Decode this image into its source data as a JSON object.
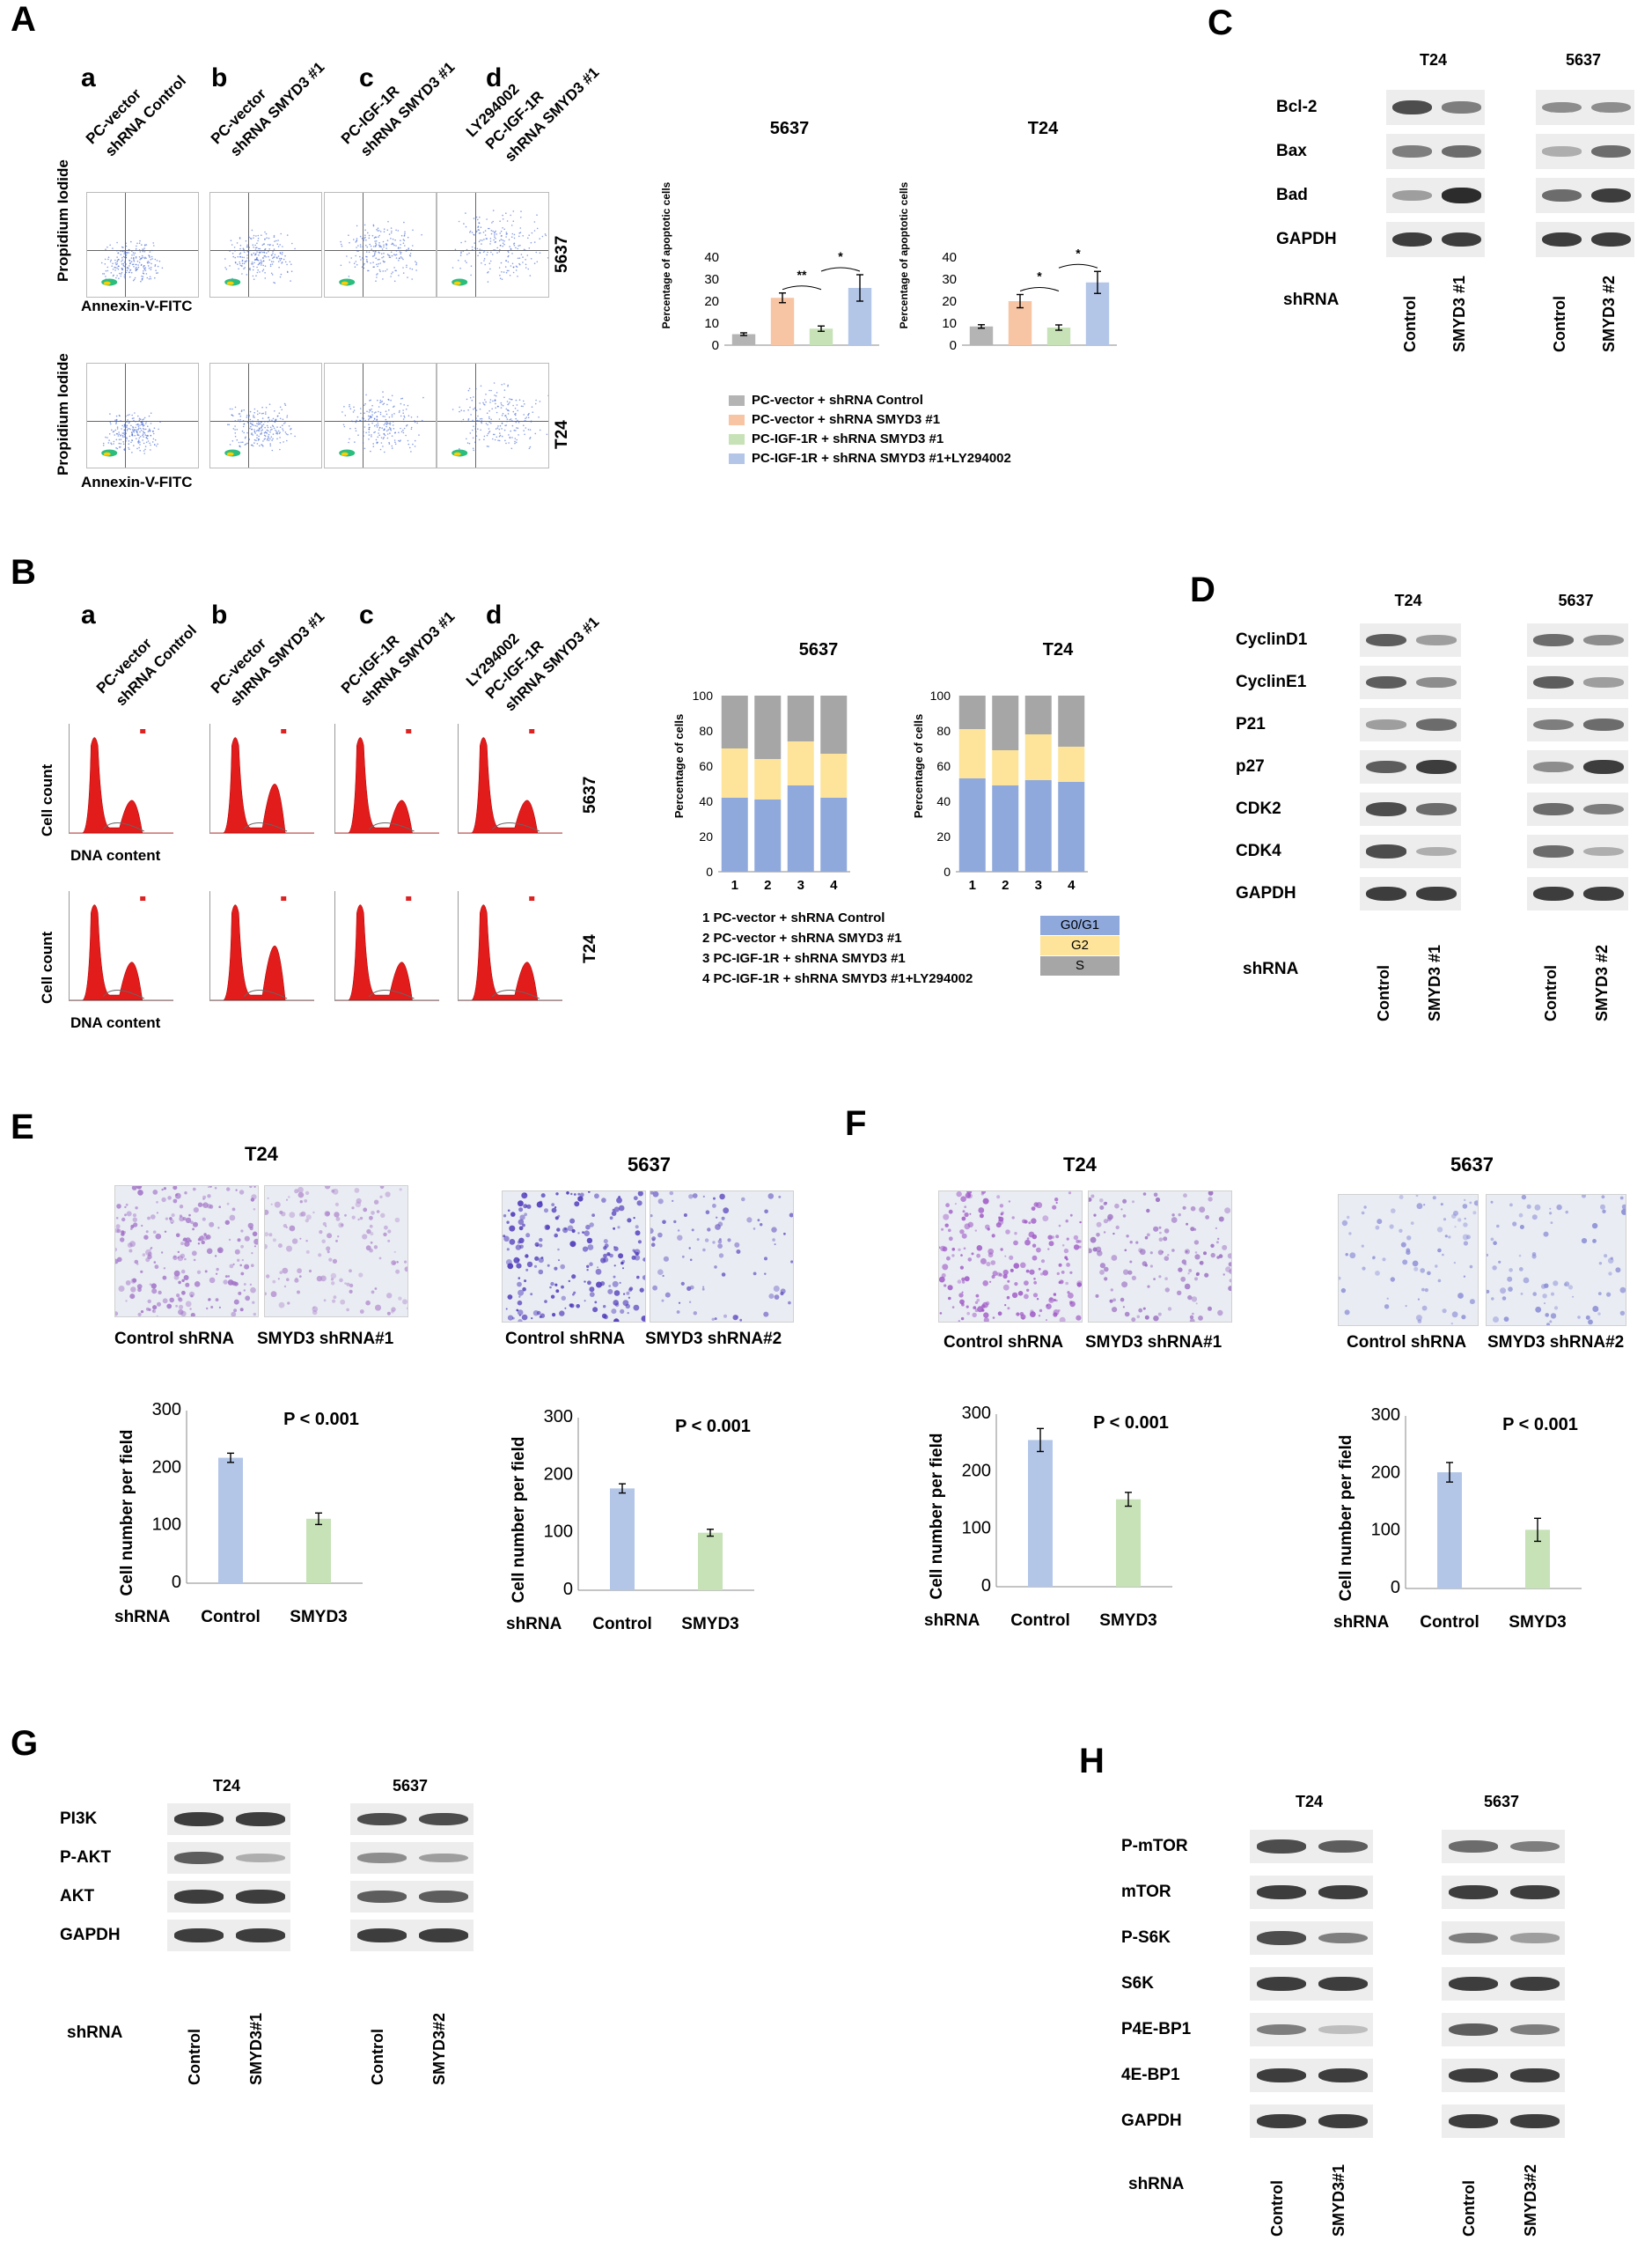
{
  "panels": {
    "A": "A",
    "B": "B",
    "C": "C",
    "D": "D",
    "E": "E",
    "F": "F",
    "G": "G",
    "H": "H"
  },
  "panelA": {
    "sublabels": [
      "a",
      "b",
      "c",
      "d"
    ],
    "conditions": [
      [
        "PC-vector",
        "shRNA Control"
      ],
      [
        "PC-vector",
        "shRNA SMYD3 #1"
      ],
      [
        "PC-IGF-1R",
        "shRNA SMYD3 #1"
      ],
      [
        "LY294002",
        "PC-IGF-1R",
        "shRNA SMYD3 #1"
      ]
    ],
    "row_labels": [
      "5637",
      "T24"
    ],
    "y_axis": "Propidium Iodide",
    "x_axis": "Annexin-V-FITC",
    "legend": [
      "PC-vector + shRNA Control",
      "PC-vector + shRNA SMYD3 #1",
      "PC-IGF-1R + shRNA SMYD3 #1",
      "PC-IGF-1R + shRNA SMYD3 #1+LY294002"
    ],
    "legend_colors": [
      "#b4b4b4",
      "#f7c4a4",
      "#c6e2b6",
      "#b3c6e8"
    ]
  },
  "panelB": {
    "sublabels": [
      "a",
      "b",
      "c",
      "d"
    ],
    "conditions": [
      [
        "PC-vector",
        "shRNA Control"
      ],
      [
        "PC-vector",
        "shRNA SMYD3 #1"
      ],
      [
        "PC-IGF-1R",
        "shRNA SMYD3 #1"
      ],
      [
        "LY294002",
        "PC-IGF-1R",
        "shRNA SMYD3 #1"
      ]
    ],
    "row_labels": [
      "5637",
      "T24"
    ],
    "y_axis": "Cell count",
    "x_axis": "DNA content",
    "legend_numbered": [
      "1  PC-vector + shRNA Control",
      "2  PC-vector + shRNA SMYD3 #1",
      "3  PC-IGF-1R + shRNA SMYD3 #1",
      "4  PC-IGF-1R + shRNA SMYD3 #1+LY294002"
    ],
    "phase_legend": [
      "G0/G1",
      "G2",
      "S"
    ],
    "phase_colors": [
      "#8fa9dc",
      "#fde49a",
      "#a6a6a6"
    ]
  },
  "panelC": {
    "cell_lines": [
      "T24",
      "5637"
    ],
    "proteins": [
      "Bcl-2",
      "Bax",
      "Bad",
      "GAPDH"
    ],
    "row_label": "shRNA",
    "lanes_left": [
      "Control",
      "SMYD3 #1"
    ],
    "lanes_right": [
      "Control",
      "SMYD3 #2"
    ]
  },
  "panelD": {
    "cell_lines": [
      "T24",
      "5637"
    ],
    "proteins": [
      "CyclinD1",
      "CyclinE1",
      "P21",
      "p27",
      "CDK2",
      "CDK4",
      "GAPDH"
    ],
    "row_label": "shRNA",
    "lanes_left": [
      "Control",
      "SMYD3 #1"
    ],
    "lanes_right": [
      "Control",
      "SMYD3 #2"
    ]
  },
  "panelE": {
    "cell_lines": [
      "T24",
      "5637"
    ],
    "captions_left": [
      "Control shRNA",
      "SMYD3 shRNA#1"
    ],
    "captions_right": [
      "Control shRNA",
      "SMYD3 shRNA#2"
    ],
    "ylabel": "Cell number per field",
    "row_label": "shRNA",
    "pvalue": "P < 0.001"
  },
  "panelF": {
    "cell_lines": [
      "T24",
      "5637"
    ],
    "captions_left": [
      "Control shRNA",
      "SMYD3 shRNA#1"
    ],
    "captions_right": [
      "Control shRNA",
      "SMYD3 shRNA#2"
    ],
    "ylabel": "Cell number per field",
    "row_label": "shRNA",
    "pvalue": "P < 0.001"
  },
  "panelG": {
    "cell_lines": [
      "T24",
      "5637"
    ],
    "proteins": [
      "PI3K",
      "P-AKT",
      "AKT",
      "GAPDH"
    ],
    "row_label": "shRNA",
    "lanes_left": [
      "Control",
      "SMYD3#1"
    ],
    "lanes_right": [
      "Control",
      "SMYD3#2"
    ]
  },
  "panelH": {
    "cell_lines": [
      "T24",
      "5637"
    ],
    "proteins": [
      "P-mTOR",
      "mTOR",
      "P-S6K",
      "S6K",
      "P4E-BP1",
      "4E-BP1",
      "GAPDH"
    ],
    "row_label": "shRNA",
    "lanes_left": [
      "Control",
      "SMYD3#1"
    ],
    "lanes_right": [
      "Control",
      "SMYD3#2"
    ]
  },
  "chart_data": [
    {
      "id": "A-5637",
      "type": "bar",
      "title": "5637",
      "ylabel": "Percentage of apoptotic cells",
      "ylim": [
        0,
        40
      ],
      "yticks": [
        0,
        10,
        20,
        30,
        40
      ],
      "categories": [
        "PC-vector + shRNA Control",
        "PC-vector + shRNA SMYD3 #1",
        "PC-IGF-1R + shRNA SMYD3 #1",
        "PC-IGF-1R + shRNA SMYD3 #1+LY294002"
      ],
      "values": [
        5,
        21.5,
        7.5,
        26
      ],
      "errors": [
        0.6,
        2.2,
        1.2,
        6
      ],
      "significance": [
        "**",
        "*"
      ],
      "colors": [
        "#b4b4b4",
        "#f7c4a4",
        "#c6e2b6",
        "#b3c6e8"
      ]
    },
    {
      "id": "A-T24",
      "type": "bar",
      "title": "T24",
      "ylabel": "Percentage of apoptotic cells",
      "ylim": [
        0,
        40
      ],
      "yticks": [
        0,
        10,
        20,
        30,
        40
      ],
      "categories": [
        "PC-vector + shRNA Control",
        "PC-vector + shRNA SMYD3 #1",
        "PC-IGF-1R + shRNA SMYD3 #1",
        "PC-IGF-1R + shRNA SMYD3 #1+LY294002"
      ],
      "values": [
        8.5,
        20,
        8,
        28.5
      ],
      "errors": [
        0.8,
        3,
        1.2,
        5
      ],
      "significance": [
        "*",
        "*"
      ],
      "colors": [
        "#b4b4b4",
        "#f7c4a4",
        "#c6e2b6",
        "#b3c6e8"
      ]
    },
    {
      "id": "B-5637",
      "type": "bar",
      "stacked": true,
      "title": "5637",
      "ylabel": "Percentage of cells",
      "ylim": [
        0,
        100
      ],
      "yticks": [
        0,
        20,
        40,
        60,
        80,
        100
      ],
      "categories": [
        "1",
        "2",
        "3",
        "4"
      ],
      "series": [
        {
          "name": "G0/G1",
          "values": [
            42,
            41,
            49,
            42
          ]
        },
        {
          "name": "G2",
          "values": [
            28,
            23,
            25,
            25
          ]
        },
        {
          "name": "S",
          "values": [
            30,
            36,
            26,
            33
          ]
        }
      ]
    },
    {
      "id": "B-T24",
      "type": "bar",
      "stacked": true,
      "title": "T24",
      "ylabel": "Percentage of cells",
      "ylim": [
        0,
        100
      ],
      "yticks": [
        0,
        20,
        40,
        60,
        80,
        100
      ],
      "categories": [
        "1",
        "2",
        "3",
        "4"
      ],
      "series": [
        {
          "name": "G0/G1",
          "values": [
            53,
            49,
            52,
            51
          ]
        },
        {
          "name": "G2",
          "values": [
            28,
            20,
            26,
            20
          ]
        },
        {
          "name": "S",
          "values": [
            19,
            31,
            22,
            29
          ]
        }
      ]
    },
    {
      "id": "E-T24",
      "type": "bar",
      "ylabel": "Cell number per field",
      "ylim": [
        0,
        300
      ],
      "yticks": [
        0,
        100,
        200,
        300
      ],
      "categories": [
        "Control",
        "SMYD3"
      ],
      "values": [
        218,
        112
      ],
      "errors": [
        8,
        10
      ],
      "colors": [
        "#b3c6e8",
        "#c6e2b6"
      ]
    },
    {
      "id": "E-5637",
      "type": "bar",
      "ylabel": "Cell number per field",
      "ylim": [
        0,
        300
      ],
      "yticks": [
        0,
        100,
        200,
        300
      ],
      "categories": [
        "Control",
        "SMYD3"
      ],
      "values": [
        177,
        100
      ],
      "errors": [
        8,
        6
      ],
      "colors": [
        "#b3c6e8",
        "#c6e2b6"
      ]
    },
    {
      "id": "F-T24",
      "type": "bar",
      "ylabel": "Cell number per field",
      "ylim": [
        0,
        300
      ],
      "yticks": [
        0,
        100,
        200,
        300
      ],
      "categories": [
        "Control",
        "SMYD3"
      ],
      "values": [
        255,
        152
      ],
      "errors": [
        20,
        12
      ],
      "colors": [
        "#b3c6e8",
        "#c6e2b6"
      ]
    },
    {
      "id": "F-5637",
      "type": "bar",
      "ylabel": "Cell number per field",
      "ylim": [
        0,
        300
      ],
      "yticks": [
        0,
        100,
        200,
        300
      ],
      "categories": [
        "Control",
        "SMYD3"
      ],
      "values": [
        202,
        102
      ],
      "errors": [
        17,
        20
      ],
      "colors": [
        "#b3c6e8",
        "#c6e2b6"
      ]
    }
  ]
}
